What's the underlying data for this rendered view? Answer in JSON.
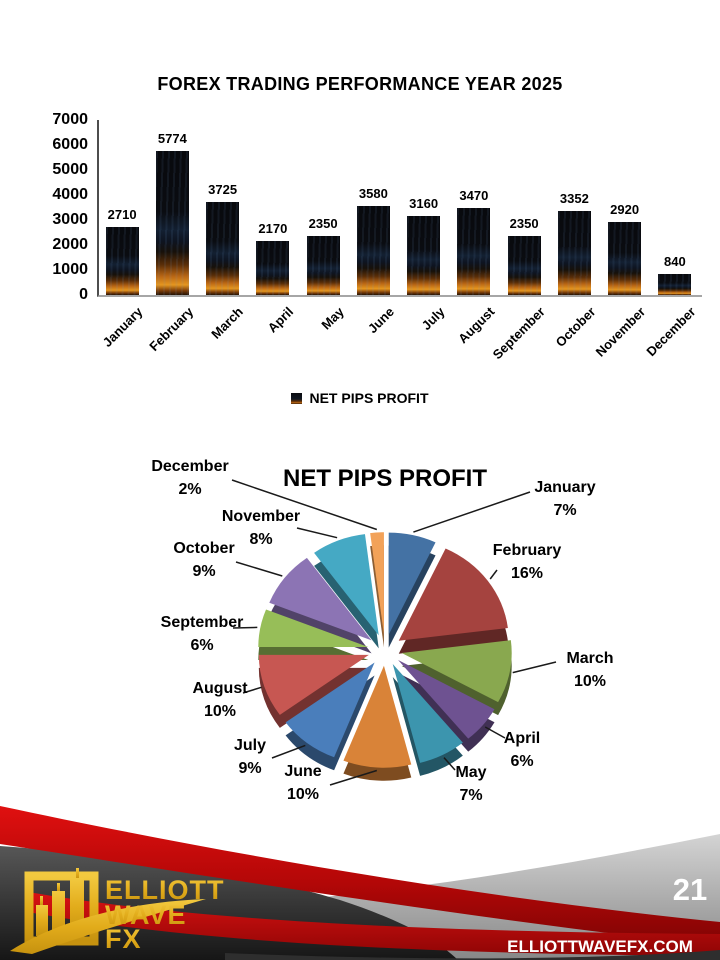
{
  "slide": {
    "page_number": "21",
    "website": "ELLIOTTWAVEFX.COM",
    "logo": {
      "line1": "ELLIOTT",
      "line2": "WAVE",
      "line3": "FX"
    }
  },
  "chart_data": [
    {
      "type": "bar",
      "title": "FOREX TRADING PERFORMANCE YEAR 2025",
      "series_name": "NET PIPS PROFIT",
      "categories": [
        "January",
        "February",
        "March",
        "April",
        "May",
        "June",
        "July",
        "August",
        "September",
        "October",
        "November",
        "December"
      ],
      "values": [
        2710,
        5774,
        3725,
        2170,
        2350,
        3580,
        3160,
        3470,
        2350,
        3352,
        2920,
        840
      ],
      "ylim": [
        0,
        7000
      ],
      "ytick_step": 1000,
      "grid": false,
      "legend_position": "bottom",
      "bar_fill": "fire-photo-texture",
      "label_color": "#000000"
    },
    {
      "type": "pie",
      "style": "3d-exploded",
      "title": "NET PIPS PROFIT",
      "categories": [
        "January",
        "February",
        "March",
        "April",
        "May",
        "June",
        "July",
        "August",
        "September",
        "October",
        "November",
        "December"
      ],
      "values": [
        7,
        16,
        10,
        6,
        7,
        10,
        9,
        10,
        6,
        9,
        8,
        2
      ],
      "value_suffix": "%",
      "colors": [
        "#4472A4",
        "#A5433F",
        "#89A84F",
        "#6E5291",
        "#3C95AE",
        "#D98338",
        "#4A7EBB",
        "#C75752",
        "#97BE58",
        "#8C74B4",
        "#45A9C4",
        "#F2A259"
      ],
      "label_position": "outside-with-leader-lines"
    }
  ]
}
